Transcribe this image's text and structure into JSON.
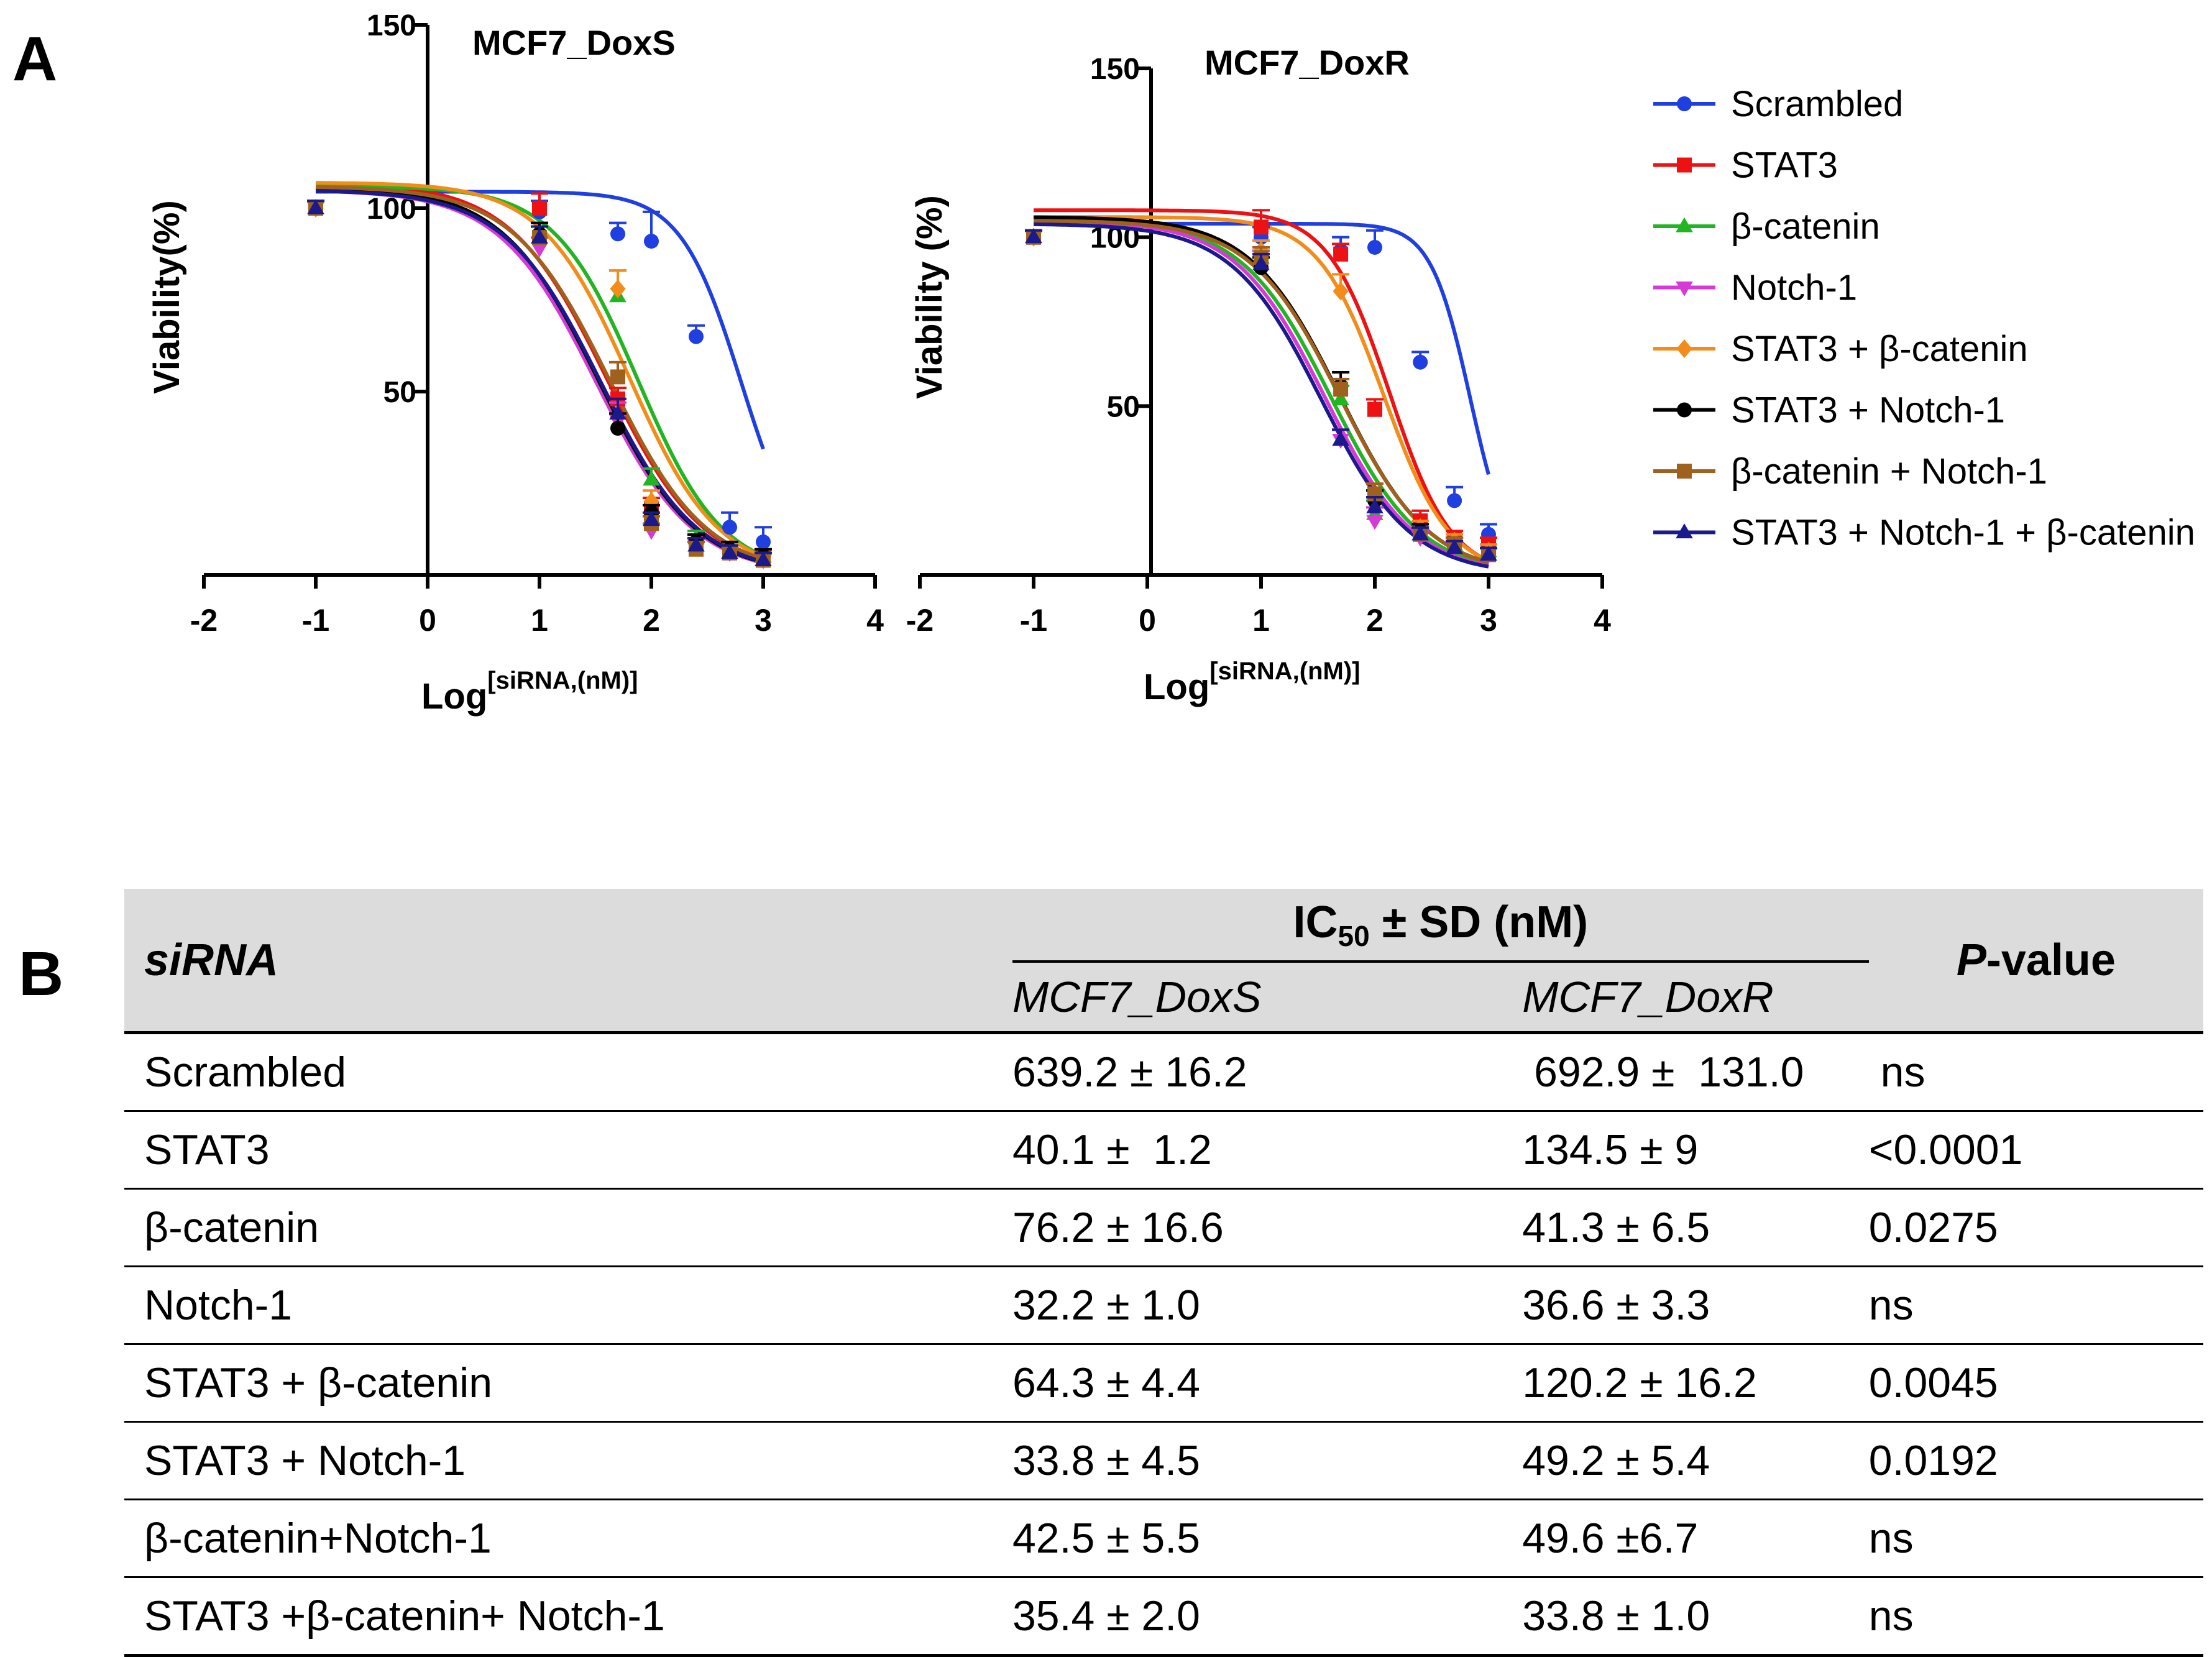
{
  "panel_a_label": "A",
  "panel_b_label": "B",
  "chart_data": [
    {
      "type": "scatter",
      "title": "MCF7_DoxS",
      "ylabel": "Viability(%)",
      "xlabel_main": "Log",
      "xlabel_sup": "[siRNA,(nM)]",
      "xlim": [
        -2,
        4
      ],
      "ylim": [
        0,
        150
      ],
      "xticks": [
        "-2",
        "-1",
        "0",
        "1",
        "2",
        "3",
        "4"
      ],
      "yticks": [
        "50",
        "100",
        "150"
      ],
      "curves": [
        {
          "series": "Scrambled",
          "top": 104.5,
          "bottom": 0,
          "logIC50": 2.806,
          "hill": 1.6
        },
        {
          "series": "STAT3",
          "top": 107,
          "bottom": 0,
          "logIC50": 1.603,
          "hill": 1.0
        },
        {
          "series": "β-catenin",
          "top": 106,
          "bottom": 0,
          "logIC50": 1.882,
          "hill": 1.15
        },
        {
          "series": "Notch-1",
          "top": 105,
          "bottom": 0,
          "logIC50": 1.508,
          "hill": 1.0
        },
        {
          "series": "STAT3 + β-catenin",
          "top": 107,
          "bottom": 0,
          "logIC50": 1.808,
          "hill": 1.1
        },
        {
          "series": "STAT3 + Notch-1",
          "top": 106,
          "bottom": 0,
          "logIC50": 1.529,
          "hill": 1.0
        },
        {
          "series": "β-catenin + Notch-1",
          "top": 106,
          "bottom": 0,
          "logIC50": 1.628,
          "hill": 1.0
        },
        {
          "series": "STAT3 + Notch-1 + β-catenin",
          "top": 105,
          "bottom": 0,
          "logIC50": 1.549,
          "hill": 1.0
        }
      ],
      "points": [
        {
          "series": "Scrambled",
          "x": [
            -1,
            1,
            1.7,
            2,
            2.4,
            2.7,
            3
          ],
          "y": [
            100,
            99,
            93,
            91,
            65,
            13,
            9
          ],
          "err": [
            2,
            3,
            3,
            8,
            3,
            4,
            4
          ]
        },
        {
          "series": "STAT3",
          "x": [
            -1,
            1,
            1.7,
            2,
            2.4,
            2.7,
            3
          ],
          "y": [
            100,
            100,
            48,
            18,
            8,
            6,
            5
          ],
          "err": [
            2,
            4,
            3,
            3,
            2,
            2,
            2
          ]
        },
        {
          "series": "β-catenin",
          "x": [
            -1,
            1,
            1.7,
            2,
            2.4,
            2.7,
            3
          ],
          "y": [
            100,
            92,
            76,
            26,
            10,
            6,
            5
          ],
          "err": [
            2,
            3,
            7,
            3,
            2,
            2,
            2
          ]
        },
        {
          "series": "Notch-1",
          "x": [
            -1,
            1,
            1.7,
            2,
            2.4,
            2.7,
            3
          ],
          "y": [
            100,
            89,
            42,
            12,
            8,
            6,
            4
          ],
          "err": [
            2,
            3,
            5,
            2,
            2,
            2,
            2
          ]
        },
        {
          "series": "STAT3 + β-catenin",
          "x": [
            -1,
            1,
            1.7,
            2,
            2.4,
            2.7,
            3
          ],
          "y": [
            100,
            93,
            78,
            20,
            9,
            7,
            5
          ],
          "err": [
            2,
            3,
            5,
            3,
            2,
            2,
            2
          ]
        },
        {
          "series": "STAT3 + Notch-1",
          "x": [
            -1,
            1,
            1.7,
            2,
            2.4,
            2.7,
            3
          ],
          "y": [
            100,
            93,
            40,
            17,
            9,
            7,
            5
          ],
          "err": [
            2,
            3,
            4,
            2,
            2,
            2,
            2
          ]
        },
        {
          "series": "β-catenin + Notch-1",
          "x": [
            -1,
            1,
            1.7,
            2,
            2.4,
            2.7,
            3
          ],
          "y": [
            100,
            92,
            54,
            14,
            7,
            6,
            4
          ],
          "err": [
            2,
            3,
            4,
            2,
            2,
            2,
            2
          ]
        },
        {
          "series": "STAT3 + Notch-1 + β-catenin",
          "x": [
            -1,
            1,
            1.7,
            2,
            2.4,
            2.7,
            3
          ],
          "y": [
            100,
            92,
            44,
            15,
            8,
            6,
            4
          ],
          "err": [
            2,
            3,
            4,
            2,
            2,
            2,
            2
          ]
        }
      ]
    },
    {
      "type": "scatter",
      "title": "MCF7_DoxR",
      "ylabel": "Viability (%)",
      "xlabel_main": "Log",
      "xlabel_sup": "[siRNA,(nM)]",
      "xlim": [
        -2,
        4
      ],
      "ylim": [
        0,
        150
      ],
      "xticks": [
        "-2",
        "-1",
        "0",
        "1",
        "2",
        "3",
        "4"
      ],
      "yticks": [
        "50",
        "100",
        "150"
      ],
      "curves": [
        {
          "series": "Scrambled",
          "top": 104,
          "bottom": 0,
          "logIC50": 2.841,
          "hill": 2.5
        },
        {
          "series": "STAT3",
          "top": 108,
          "bottom": 0,
          "logIC50": 2.129,
          "hill": 1.6
        },
        {
          "series": "β-catenin",
          "top": 105,
          "bottom": 0,
          "logIC50": 1.616,
          "hill": 1.1
        },
        {
          "series": "Notch-1",
          "top": 105,
          "bottom": 0,
          "logIC50": 1.563,
          "hill": 1.1
        },
        {
          "series": "STAT3 + β-catenin",
          "top": 106,
          "bottom": 0,
          "logIC50": 2.08,
          "hill": 1.5
        },
        {
          "series": "STAT3 + Notch-1",
          "top": 106,
          "bottom": 0,
          "logIC50": 1.692,
          "hill": 1.1
        },
        {
          "series": "β-catenin + Notch-1",
          "top": 105,
          "bottom": 0,
          "logIC50": 1.695,
          "hill": 1.1
        },
        {
          "series": "STAT3 + Notch-1 + β-catenin",
          "top": 104,
          "bottom": 0,
          "logIC50": 1.529,
          "hill": 1.1
        }
      ],
      "points": [
        {
          "series": "Scrambled",
          "x": [
            -1,
            1,
            1.7,
            2,
            2.4,
            2.7,
            3
          ],
          "y": [
            100,
            100,
            96,
            97,
            63,
            22,
            12
          ],
          "err": [
            2,
            3,
            4,
            5,
            3,
            4,
            3
          ]
        },
        {
          "series": "STAT3",
          "x": [
            -1,
            1,
            1.7,
            2,
            2.4,
            2.7,
            3
          ],
          "y": [
            100,
            103,
            95,
            49,
            16,
            11,
            9
          ],
          "err": [
            2,
            5,
            3,
            3,
            3,
            2,
            2
          ]
        },
        {
          "series": "β-catenin",
          "x": [
            -1,
            1,
            1.7,
            2,
            2.4,
            2.7,
            3
          ],
          "y": [
            100,
            94,
            52,
            18,
            12,
            9,
            7
          ],
          "err": [
            2,
            3,
            4,
            4,
            2,
            2,
            2
          ]
        },
        {
          "series": "Notch-1",
          "x": [
            -1,
            1,
            1.7,
            2,
            2.4,
            2.7,
            3
          ],
          "y": [
            100,
            93,
            40,
            16,
            11,
            8,
            6
          ],
          "err": [
            2,
            3,
            3,
            4,
            2,
            2,
            2
          ]
        },
        {
          "series": "STAT3 + β-catenin",
          "x": [
            -1,
            1,
            1.7,
            2,
            2.4,
            2.7,
            3
          ],
          "y": [
            100,
            96,
            84,
            24,
            14,
            10,
            7
          ],
          "err": [
            2,
            3,
            5,
            3,
            2,
            2,
            2
          ]
        },
        {
          "series": "STAT3 + Notch-1",
          "x": [
            -1,
            1,
            1.7,
            2,
            2.4,
            2.7,
            3
          ],
          "y": [
            100,
            91,
            56,
            22,
            13,
            9,
            6
          ],
          "err": [
            2,
            3,
            4,
            3,
            2,
            2,
            2
          ]
        },
        {
          "series": "β-catenin + Notch-1",
          "x": [
            -1,
            1,
            1.7,
            2,
            2.4,
            2.7,
            3
          ],
          "y": [
            100,
            94,
            55,
            24,
            12,
            9,
            6
          ],
          "err": [
            2,
            3,
            3,
            3,
            2,
            2,
            2
          ]
        },
        {
          "series": "STAT3 + Notch-1 + β-catenin",
          "x": [
            -1,
            1,
            1.7,
            2,
            2.4,
            2.7,
            3
          ],
          "y": [
            100,
            92,
            40,
            20,
            12,
            8,
            6
          ],
          "err": [
            2,
            3,
            3,
            3,
            2,
            2,
            2
          ]
        }
      ]
    }
  ],
  "series": [
    {
      "name": "Scrambled",
      "color": "#1f3fe0",
      "marker": "circle"
    },
    {
      "name": "STAT3",
      "color": "#ee1111",
      "marker": "square"
    },
    {
      "name": "β-catenin",
      "color": "#22b522",
      "marker": "triangle-up"
    },
    {
      "name": "Notch-1",
      "color": "#d63ad6",
      "marker": "triangle-down"
    },
    {
      "name": "STAT3 + β-catenin",
      "color": "#f28c1a",
      "marker": "diamond"
    },
    {
      "name": "STAT3 + Notch-1",
      "color": "#000000",
      "marker": "circle"
    },
    {
      "name": "β-catenin + Notch-1",
      "color": "#a0611e",
      "marker": "square"
    },
    {
      "name": "STAT3 + Notch-1 + β-catenin",
      "color": "#1a1a8c",
      "marker": "triangle-up"
    }
  ],
  "table": {
    "header_siRNA": "siRNA",
    "header_ic50_main": "IC",
    "header_ic50_sub": "50",
    "header_ic50_rest": " ± SD (nM)",
    "header_col1": "MCF7_DoxS",
    "header_col2": "MCF7_DoxR",
    "header_pvalue_italic": "P",
    "header_pvalue_rest": "-value",
    "rows": [
      {
        "sirna": "Scrambled",
        "doxs": "639.2 ± 16.2",
        "doxr": " 692.9 ±  131.0",
        "p": " ns"
      },
      {
        "sirna": "STAT3",
        "doxs": "40.1 ±  1.2",
        "doxr": "134.5 ± 9",
        "p": "<0.0001"
      },
      {
        "sirna": "β-catenin",
        "doxs": "76.2 ± 16.6",
        "doxr": "41.3 ± 6.5",
        "p": "0.0275"
      },
      {
        "sirna": "Notch-1",
        "doxs": "32.2 ± 1.0",
        "doxr": "36.6 ± 3.3",
        "p": "ns"
      },
      {
        "sirna": "STAT3 + β-catenin",
        "doxs": "64.3 ± 4.4",
        "doxr": "120.2 ± 16.2",
        "p": "0.0045"
      },
      {
        "sirna": "STAT3 + Notch-1",
        "doxs": "33.8 ± 4.5",
        "doxr": "49.2 ± 5.4",
        "p": "0.0192"
      },
      {
        "sirna": "β-catenin+Notch-1",
        "doxs": "42.5 ± 5.5",
        "doxr": "49.6 ±6.7",
        "p": "ns"
      },
      {
        "sirna": "STAT3 +β-catenin+ Notch-1",
        "doxs": "35.4 ± 2.0",
        "doxr": "33.8 ± 1.0",
        "p": "ns"
      }
    ]
  }
}
